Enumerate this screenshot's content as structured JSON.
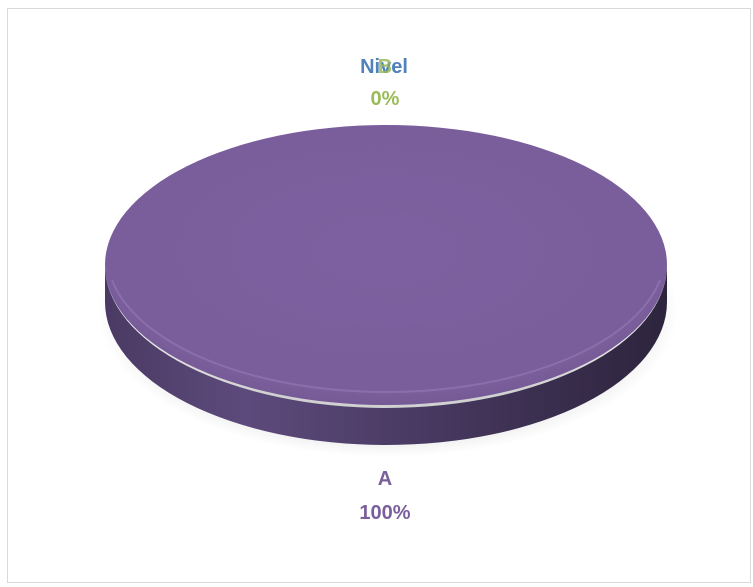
{
  "chart_data": {
    "type": "pie",
    "style": "3d",
    "categories": [
      "A",
      "B",
      "Nivel"
    ],
    "values": [
      100,
      0,
      0
    ],
    "percent_labels": [
      "100%",
      "0%",
      "0%"
    ],
    "colors": [
      "#7b5f9c",
      "#9bbb59",
      "#4f81bd"
    ],
    "title": "",
    "legend": "none",
    "data_labels": "category and percentage"
  }
}
